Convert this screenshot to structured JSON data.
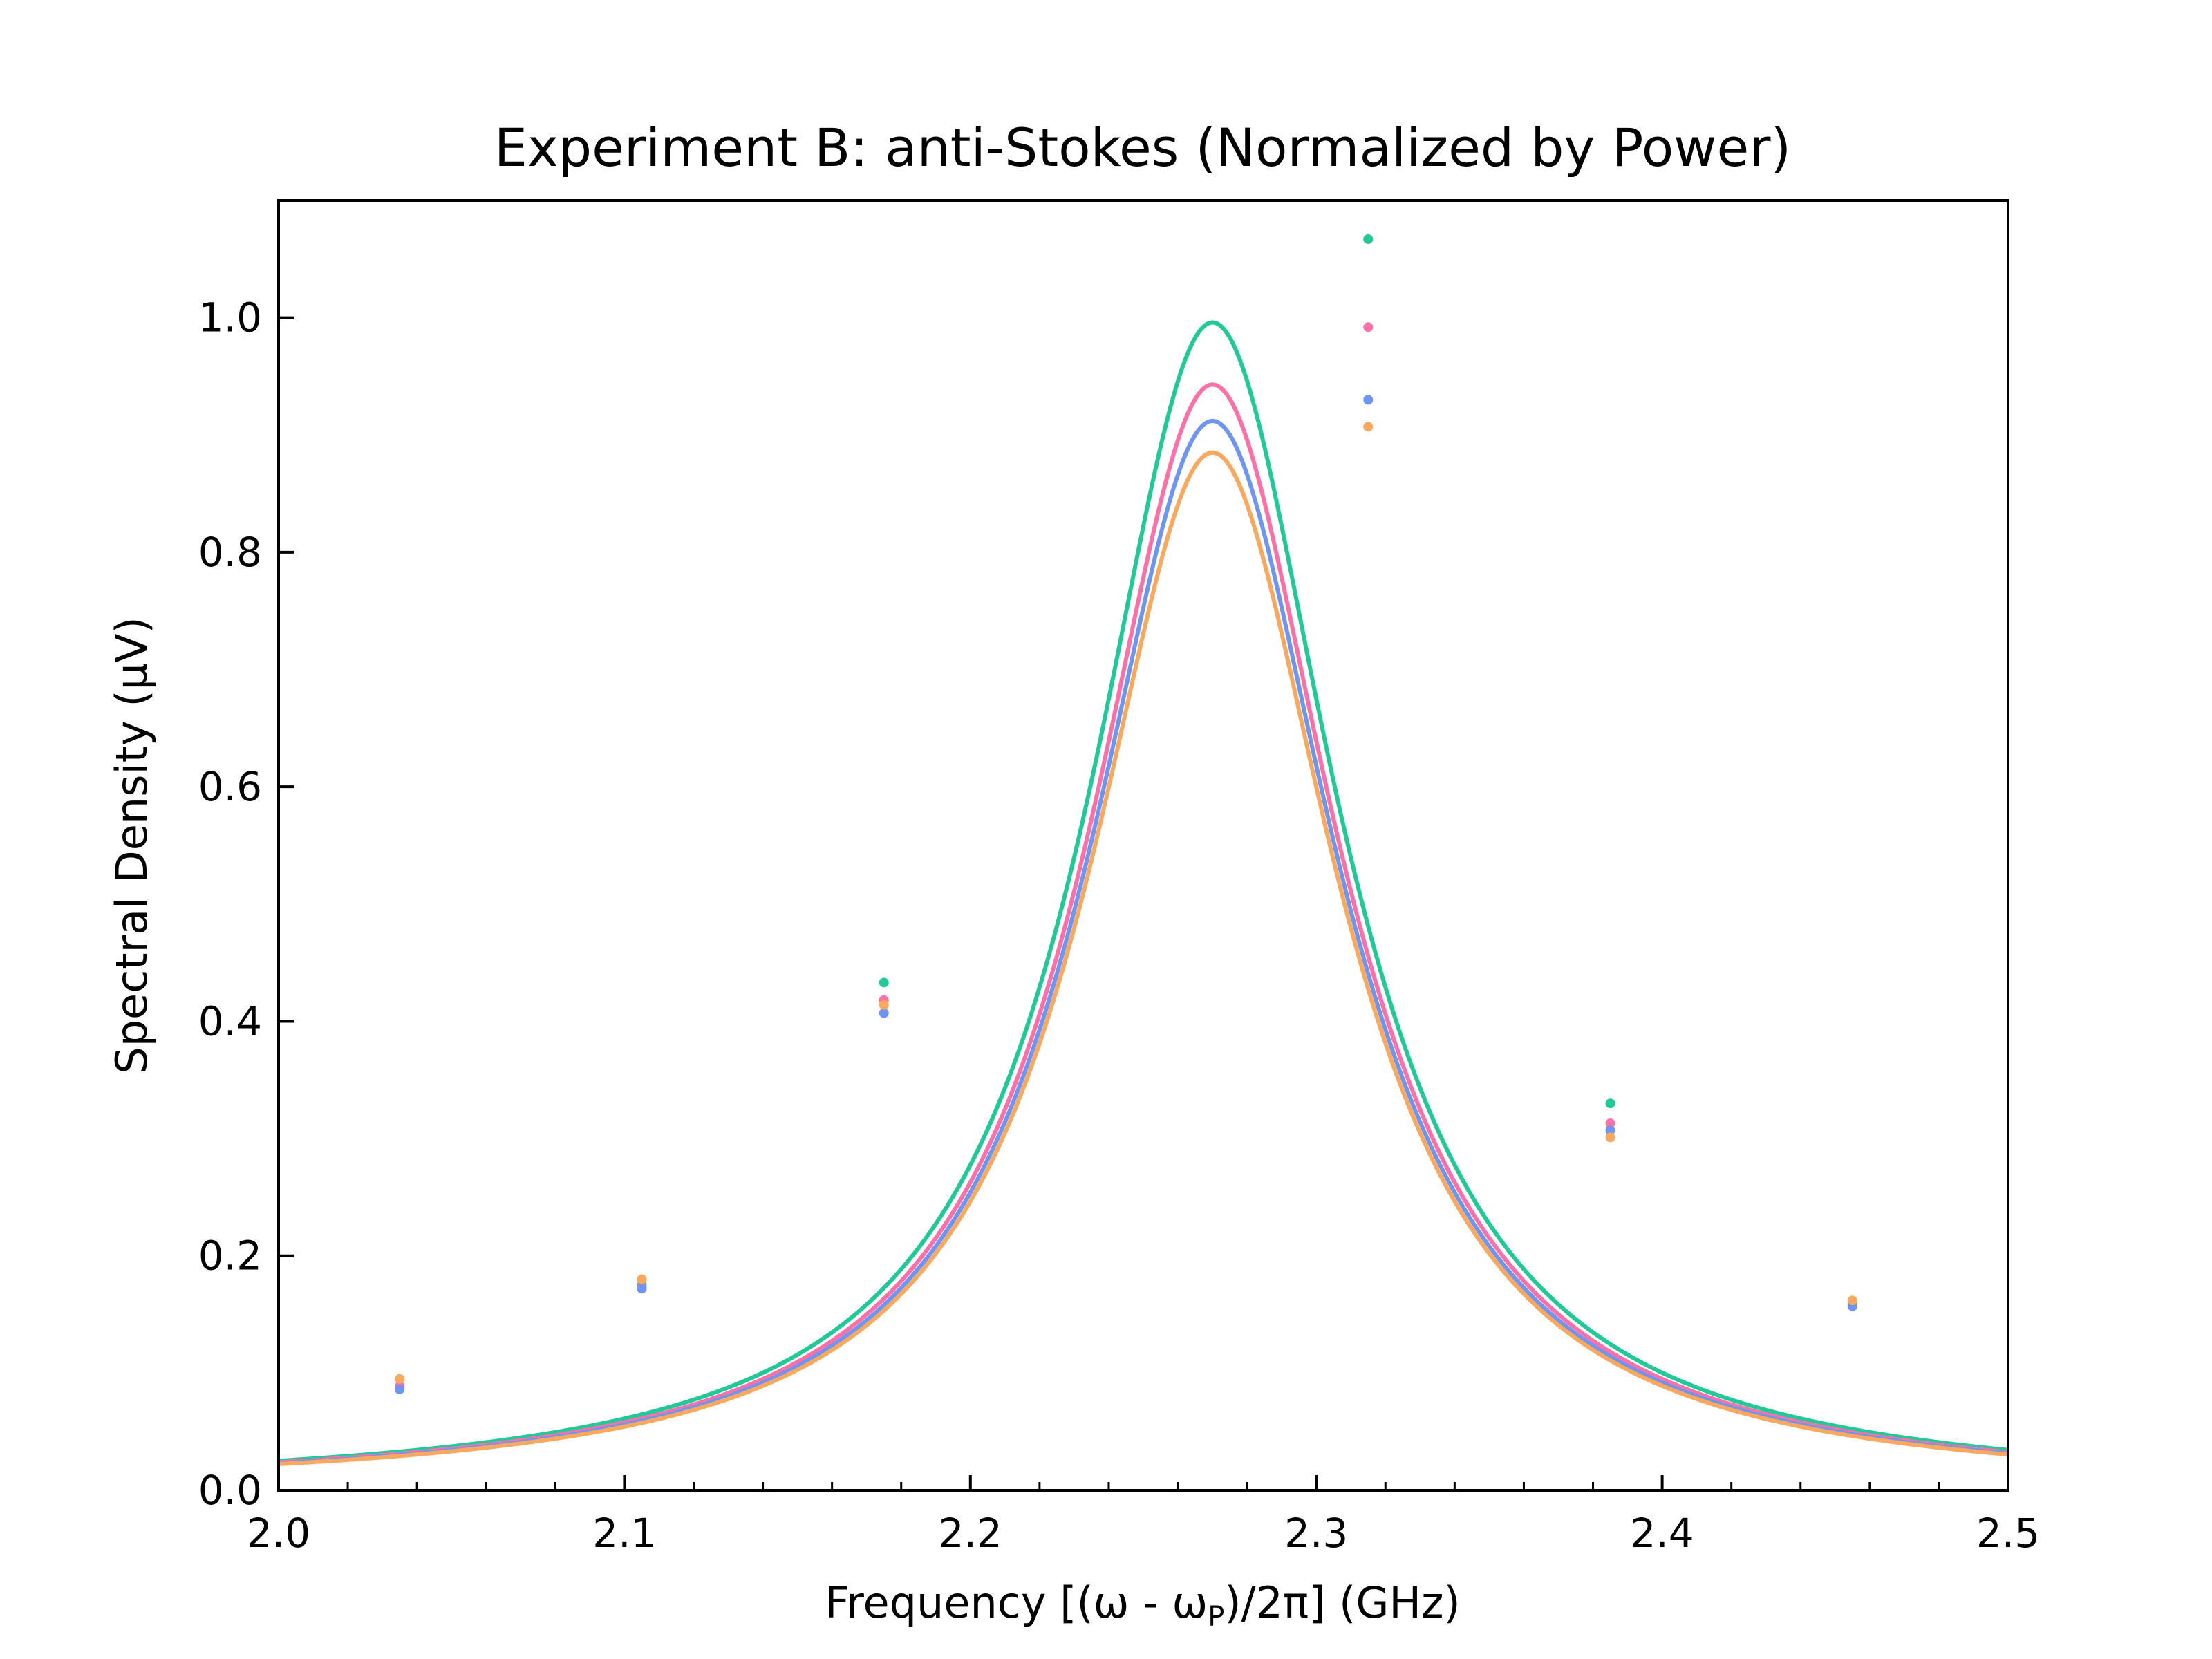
{
  "chart_data": {
    "type": "line",
    "title": "Experiment B: anti-Stokes (Normalized by Power)",
    "xlabel": "Frequency [(ω - ω",
    "xlabel_sub": "P",
    "xlabel_tail": ")/2π] (GHz)",
    "ylabel": "Spectral Density (μV)",
    "xlim": [
      2.0,
      2.5
    ],
    "ylim": [
      0.0,
      1.1
    ],
    "xticks": [
      2.0,
      2.1,
      2.2,
      2.3,
      2.4,
      2.5
    ],
    "xtick_labels": [
      "2.0",
      "2.1",
      "2.2",
      "2.3",
      "2.4",
      "2.5"
    ],
    "yticks": [
      0.0,
      0.2,
      0.4,
      0.6,
      0.8,
      1.0
    ],
    "ytick_labels": [
      "0.0",
      "0.2",
      "0.4",
      "0.6",
      "0.8",
      "1.0"
    ],
    "grid": false,
    "legend": "none",
    "fit_center": 2.27,
    "fit_hwhm": 0.0435,
    "series": [
      {
        "color": "#20c997",
        "fit_peak": 0.996,
        "points": {
          "x": [
            2.035,
            2.105,
            2.175,
            2.315,
            2.385,
            2.455
          ],
          "y": [
            0.088,
            0.175,
            0.433,
            1.067,
            0.33,
            0.16
          ]
        }
      },
      {
        "color": "#ff6fa8",
        "fit_peak": 0.943,
        "points": {
          "x": [
            2.035,
            2.105,
            2.175,
            2.315,
            2.385,
            2.455
          ],
          "y": [
            0.089,
            0.173,
            0.418,
            0.992,
            0.313,
            0.158
          ]
        }
      },
      {
        "color": "#6f95f2",
        "fit_peak": 0.912,
        "points": {
          "x": [
            2.035,
            2.105,
            2.175,
            2.315,
            2.385,
            2.455
          ],
          "y": [
            0.086,
            0.172,
            0.407,
            0.93,
            0.307,
            0.157
          ]
        }
      },
      {
        "color": "#f9a85e",
        "fit_peak": 0.885,
        "points": {
          "x": [
            2.035,
            2.105,
            2.175,
            2.315,
            2.385,
            2.455
          ],
          "y": [
            0.095,
            0.18,
            0.414,
            0.907,
            0.301,
            0.162
          ]
        }
      }
    ]
  }
}
